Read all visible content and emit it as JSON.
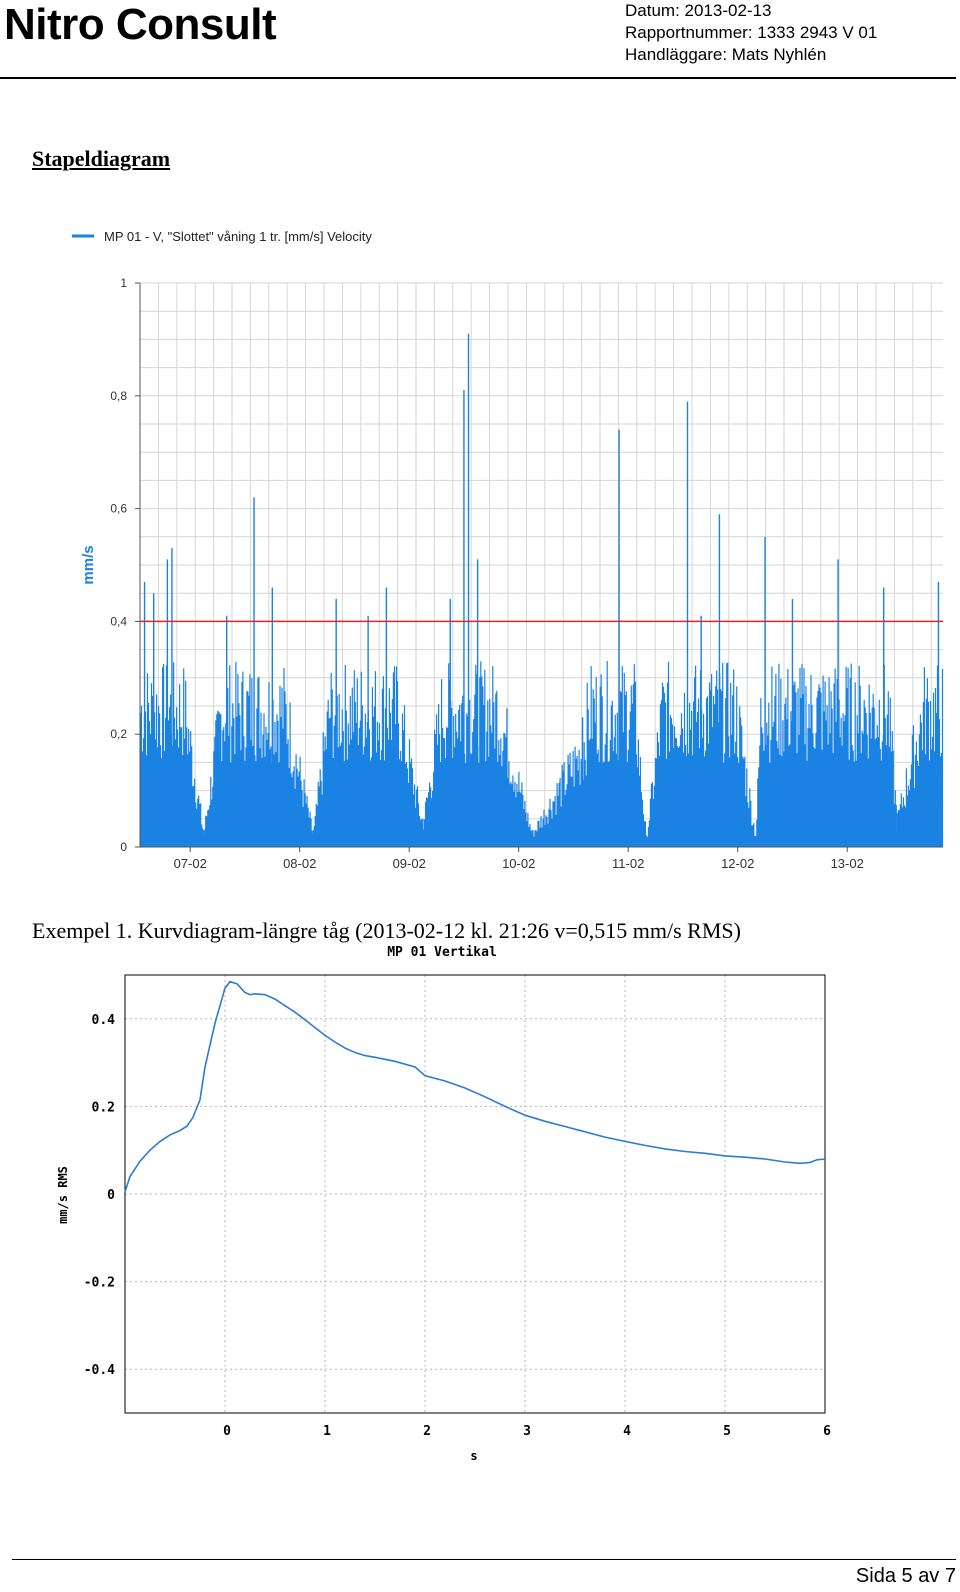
{
  "header": {
    "brand": "Nitro Consult",
    "date": "Datum: 2013-02-13",
    "report_number": "Rapportnummer: 1333 2943 V 01",
    "handler": "Handläggare: Mats Nyhlén"
  },
  "section_title": "Stapeldiagram",
  "caption": "Exempel 1. Kurvdiagram-längre tåg (2013-02-12 kl. 21:26 v=0,515 mm/s RMS)",
  "footer": {
    "page": "Sida 5 av 7"
  },
  "chart_data": [
    {
      "type": "bar",
      "title": "",
      "ylabel": "mm/s",
      "xlabel": "",
      "ylim": [
        0,
        1
      ],
      "yticks": [
        0,
        0.2,
        0.4,
        0.6,
        0.8,
        1
      ],
      "ytick_labels": [
        "0",
        "0,2",
        "0,4",
        "0,6",
        "0,8",
        "1"
      ],
      "xlim": [
        "2013-02-06T13:00",
        "2013-02-13T21:00"
      ],
      "x_ticks": [
        "07-02",
        "08-02",
        "09-02",
        "10-02",
        "11-02",
        "12-02",
        "13-02"
      ],
      "threshold": 0.4,
      "grid": true,
      "legend_position": "top-left",
      "colors": {
        "series": "#1a82e2",
        "threshold": "#e0262a"
      },
      "series": [
        {
          "name": "MP 01 - V, \"Slottet\" våning 1 tr. [mm/s] Velocity",
          "description_points": [
            {
              "x": "2013-02-06T14:00",
              "y": 0.47
            },
            {
              "x": "2013-02-06T16:00",
              "y": 0.45
            },
            {
              "x": "2013-02-06T19:00",
              "y": 0.51
            },
            {
              "x": "2013-02-06T20:00",
              "y": 0.53
            },
            {
              "x": "2013-02-07T03:00",
              "y": 0.03
            },
            {
              "x": "2013-02-07T08:00",
              "y": 0.41
            },
            {
              "x": "2013-02-07T14:00",
              "y": 0.62
            },
            {
              "x": "2013-02-07T18:00",
              "y": 0.46
            },
            {
              "x": "2013-02-08T03:00",
              "y": 0.03
            },
            {
              "x": "2013-02-08T08:00",
              "y": 0.44
            },
            {
              "x": "2013-02-08T15:00",
              "y": 0.41
            },
            {
              "x": "2013-02-08T19:00",
              "y": 0.46
            },
            {
              "x": "2013-02-09T03:00",
              "y": 0.05
            },
            {
              "x": "2013-02-09T09:00",
              "y": 0.44
            },
            {
              "x": "2013-02-09T12:00",
              "y": 0.81
            },
            {
              "x": "2013-02-09T13:00",
              "y": 0.91
            },
            {
              "x": "2013-02-09T15:00",
              "y": 0.51
            },
            {
              "x": "2013-02-10T03:00",
              "y": 0.03
            },
            {
              "x": "2013-02-10T14:00",
              "y": 0.23
            },
            {
              "x": "2013-02-10T22:00",
              "y": 0.74
            },
            {
              "x": "2013-02-11T04:00",
              "y": 0.02
            },
            {
              "x": "2013-02-11T13:00",
              "y": 0.79
            },
            {
              "x": "2013-02-11T16:00",
              "y": 0.41
            },
            {
              "x": "2013-02-11T20:00",
              "y": 0.59
            },
            {
              "x": "2013-02-12T04:00",
              "y": 0.02
            },
            {
              "x": "2013-02-12T06:00",
              "y": 0.55
            },
            {
              "x": "2013-02-12T12:00",
              "y": 0.44
            },
            {
              "x": "2013-02-12T22:00",
              "y": 0.51
            },
            {
              "x": "2013-02-13T08:00",
              "y": 0.46
            },
            {
              "x": "2013-02-13T11:00",
              "y": 0.06
            },
            {
              "x": "2013-02-13T20:00",
              "y": 0.47
            }
          ]
        }
      ]
    },
    {
      "type": "line",
      "title": "MP 01 Vertikal",
      "xlabel": "s",
      "ylabel": "mm/s RMS",
      "xlim": [
        -1,
        6
      ],
      "ylim": [
        -0.5,
        0.5
      ],
      "xticks": [
        0,
        1,
        2,
        3,
        4,
        5,
        6
      ],
      "yticks": [
        -0.4,
        -0.2,
        0,
        0.2,
        0.4
      ],
      "grid": true,
      "colors": {
        "line": "#2c7bd6"
      },
      "series": [
        {
          "x": [
            -1.0,
            -0.95,
            -0.85,
            -0.75,
            -0.65,
            -0.55,
            -0.45,
            -0.38,
            -0.32,
            -0.25,
            -0.2,
            -0.15,
            -0.1,
            -0.05,
            0.0,
            0.05,
            0.12,
            0.2,
            0.25,
            0.3,
            0.4,
            0.5,
            0.6,
            0.7,
            0.8,
            0.9,
            1.0,
            1.1,
            1.2,
            1.3,
            1.4,
            1.5,
            1.7,
            1.9,
            2.0,
            2.2,
            2.4,
            2.6,
            2.8,
            3.0,
            3.2,
            3.4,
            3.6,
            3.8,
            4.0,
            4.2,
            4.4,
            4.6,
            4.8,
            5.0,
            5.2,
            5.4,
            5.6,
            5.75,
            5.85,
            5.92,
            6.0
          ],
          "y": [
            0.005,
            0.04,
            0.075,
            0.1,
            0.12,
            0.135,
            0.145,
            0.155,
            0.175,
            0.215,
            0.29,
            0.34,
            0.39,
            0.43,
            0.47,
            0.485,
            0.48,
            0.46,
            0.455,
            0.457,
            0.455,
            0.445,
            0.43,
            0.415,
            0.398,
            0.38,
            0.362,
            0.347,
            0.333,
            0.323,
            0.316,
            0.312,
            0.303,
            0.29,
            0.27,
            0.258,
            0.242,
            0.222,
            0.2,
            0.18,
            0.166,
            0.154,
            0.142,
            0.13,
            0.12,
            0.111,
            0.103,
            0.097,
            0.093,
            0.087,
            0.084,
            0.08,
            0.073,
            0.07,
            0.072,
            0.078,
            0.08
          ]
        }
      ]
    }
  ]
}
